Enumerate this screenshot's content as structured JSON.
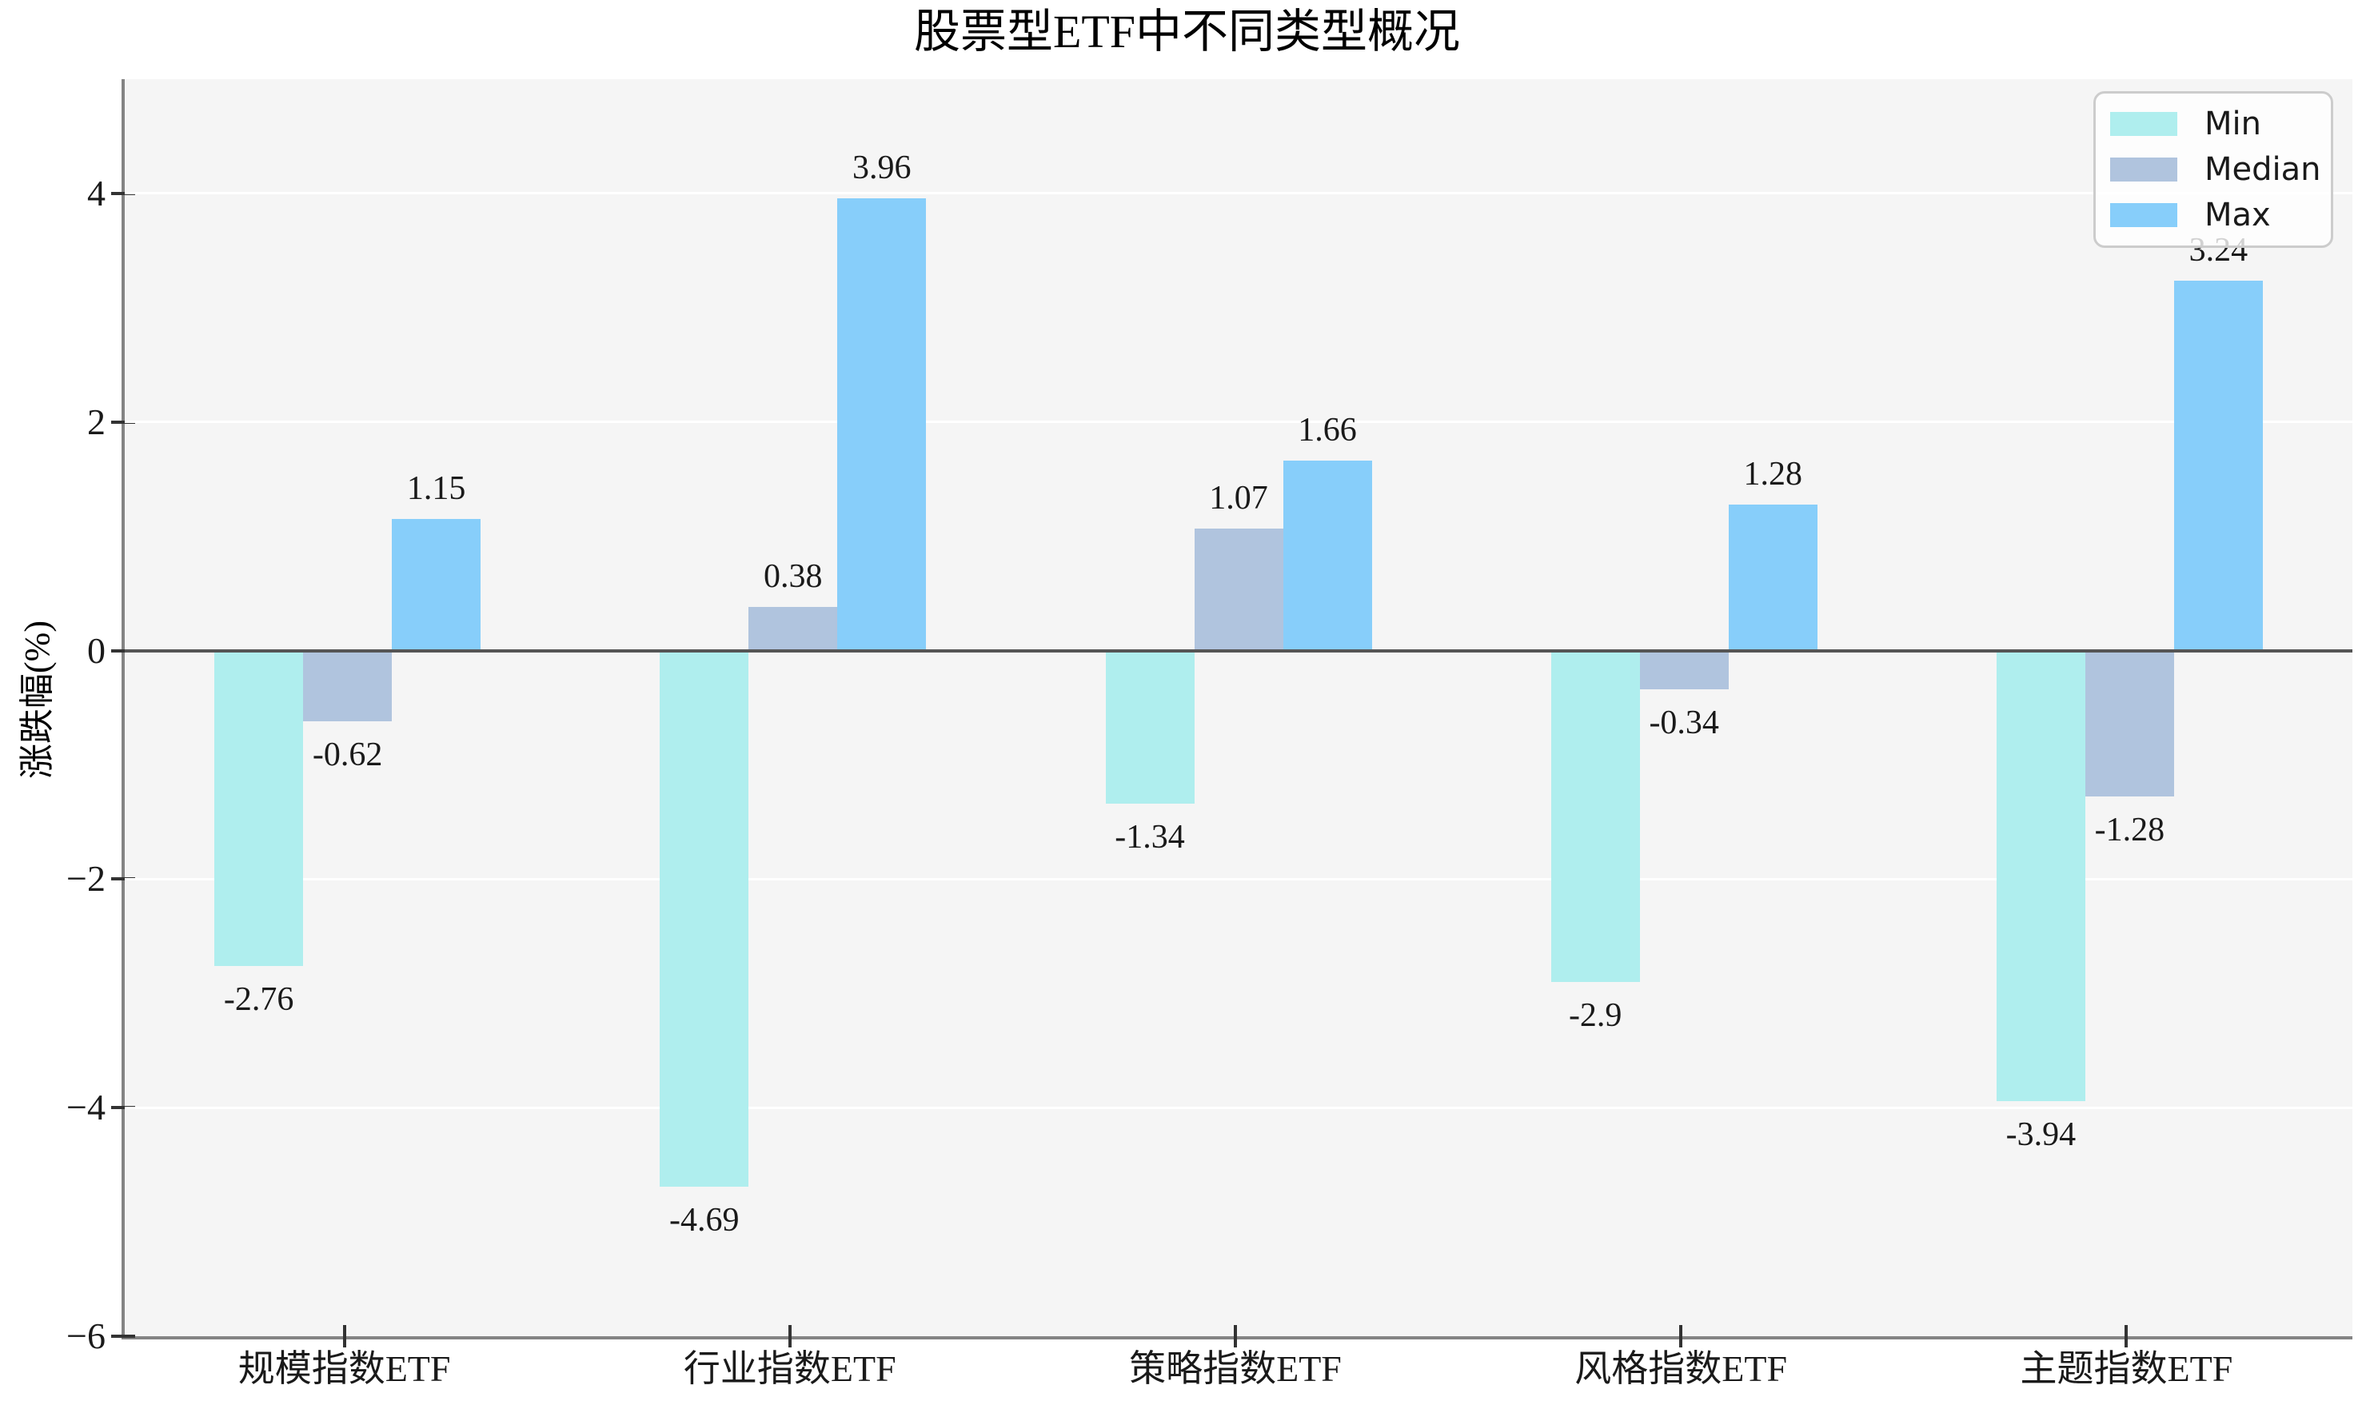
{
  "title": "股票型ETF中不同类型概况",
  "y_axis": {
    "label": "涨跌幅(%)",
    "tick_labels": [
      "4",
      "2",
      "0",
      "−2",
      "−4",
      "−6"
    ],
    "tick_values": [
      4,
      2,
      0,
      -2,
      -4,
      -6
    ]
  },
  "legend": {
    "items": [
      {
        "label": "Min",
        "color": "#AFEEEE"
      },
      {
        "label": "Median",
        "color": "#B0C4DE"
      },
      {
        "label": "Max",
        "color": "#87CEFA"
      }
    ],
    "position": "upper right"
  },
  "chart_data": {
    "type": "bar",
    "title": "股票型ETF中不同类型概况",
    "xlabel": "",
    "ylabel": "涨跌幅(%)",
    "categories": [
      "规模指数ETF",
      "行业指数ETF",
      "策略指数ETF",
      "风格指数ETF",
      "主题指数ETF"
    ],
    "series": [
      {
        "name": "Min",
        "color": "#AFEEEE",
        "values": [
          -2.76,
          -4.69,
          -1.34,
          -2.9,
          -3.94
        ],
        "labels": [
          "-2.76",
          "-4.69",
          "-1.34",
          "-2.9",
          "-3.94"
        ]
      },
      {
        "name": "Median",
        "color": "#B0C4DE",
        "values": [
          -0.62,
          0.38,
          1.07,
          -0.34,
          -1.28
        ],
        "labels": [
          "-0.62",
          "0.38",
          "1.07",
          "-0.34",
          "-1.28"
        ]
      },
      {
        "name": "Max",
        "color": "#87CEFA",
        "values": [
          1.15,
          3.96,
          1.66,
          1.28,
          3.24
        ],
        "labels": [
          "1.15",
          "3.96",
          "1.66",
          "1.28",
          "3.24"
        ]
      }
    ],
    "ylim": [
      -6,
      5
    ],
    "yticks": [
      4,
      2,
      0,
      -2,
      -4,
      -6
    ],
    "grid": true,
    "grid_color": "#ffffff",
    "zero_line_color": "#555555",
    "plot_background": "#f5f5f5",
    "spine_color": "#848484",
    "legend_position": "upper right"
  }
}
